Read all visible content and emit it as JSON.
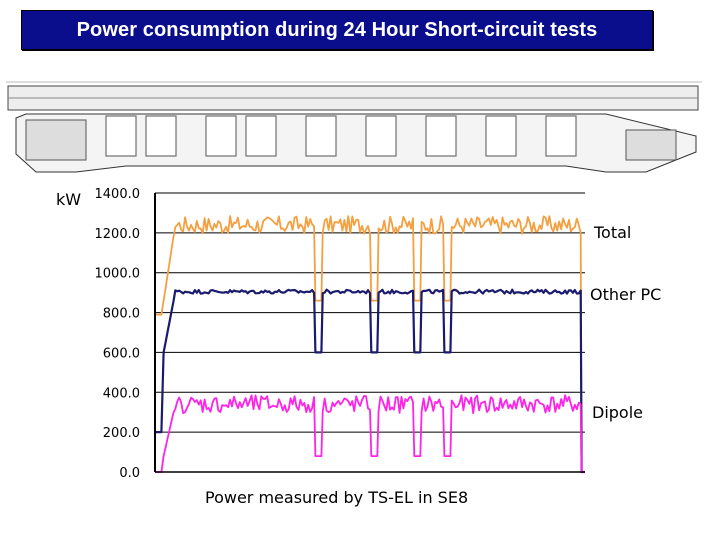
{
  "title": "Power consumption during 24 Hour Short-circuit tests",
  "chart_data": {
    "type": "line",
    "ylabel": "kW",
    "ylim": [
      0,
      1400
    ],
    "yticks": [
      "0.0",
      "200.0",
      "400.0",
      "600.0",
      "800.0",
      "1000.0",
      "1200.0",
      "1400.0"
    ],
    "caption": "Power measured by TS-EL in SE8",
    "grid": true,
    "legend": "right (inline labels)",
    "series": [
      {
        "name": "Total",
        "color": "#f4a040",
        "plateau": 1240,
        "dip": 860,
        "low": 790,
        "end": 0
      },
      {
        "name": "Other PC",
        "color": "#1a1a6e",
        "plateau": 905,
        "dip": 600,
        "low": 200,
        "end": 0
      },
      {
        "name": "Dipole",
        "color": "#ff22e8",
        "plateau": 340,
        "dip": 80,
        "low": 0,
        "end": 0
      }
    ]
  }
}
